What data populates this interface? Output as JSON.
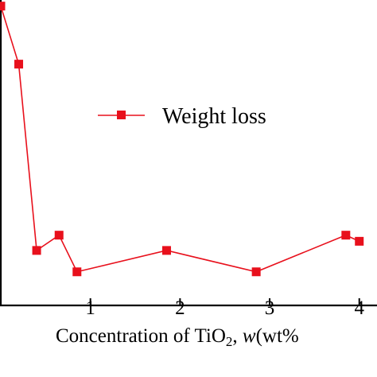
{
  "chart_data": {
    "type": "line",
    "xlabel": {
      "prefix": "Concentration of TiO",
      "subscript": "2",
      "separator": ", ",
      "variable": "w",
      "unit": "(wt%"
    },
    "x_ticks": [
      1,
      2,
      3,
      4
    ],
    "x_tick_labels": [
      "1",
      "2",
      "3",
      "4"
    ],
    "xlim": [
      0,
      4.1
    ],
    "ylim": [
      0,
      1
    ],
    "grid": false,
    "legend_position": "center-right",
    "series": [
      {
        "name": "Weight loss",
        "color": "#e8101c",
        "marker": "square",
        "x": [
          0.0,
          0.2,
          0.4,
          0.65,
          0.85,
          1.85,
          2.85,
          3.85,
          4.0
        ],
        "y": [
          0.98,
          0.79,
          0.18,
          0.23,
          0.11,
          0.18,
          0.11,
          0.23,
          0.21
        ]
      }
    ]
  }
}
